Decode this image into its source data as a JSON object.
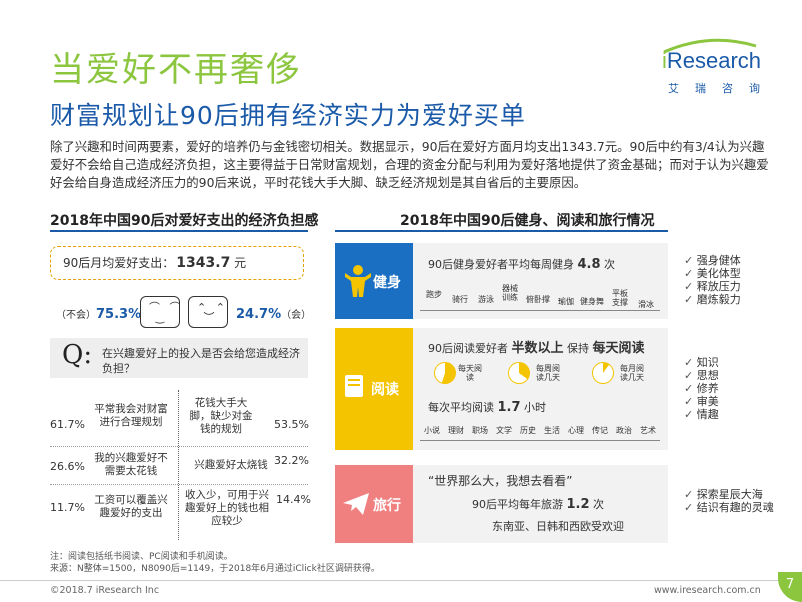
{
  "title": "当爱好不再奢侈",
  "subtitle": "财富规划让90后拥有经济实力为爱好买单",
  "logo": {
    "brand_prefix": "i",
    "brand_rest": "Research",
    "cn": "艾瑞咨询"
  },
  "intro": "除了兴趣和时间两要素，爱好的培养仍与金钱密切相关。数据显示，90后在爱好方面月均支出1343.7元。90后中约有3/4认为兴趣爱好不会给自己造成经济负担，这主要得益于日常财富规划，合理的资金分配与利用为爱好落地提供了资金基础；而对于认为兴趣爱好会给自身造成经济压力的90后来说，平时花钱大手大脚、缺乏经济规划是其自省后的主要原因。",
  "left": {
    "heading": "2018年中国90后对爱好支出的经济负担感",
    "month_label": "90后月均爱好支出：",
    "month_value": "1343.7",
    "month_unit": "元",
    "no_label": "（不会）",
    "no_pct": "75.3%",
    "yes_pct": "24.7%",
    "yes_label": "（会）",
    "face_smile": "⌒ ⌒\n ‿ ",
    "face_sad": "⌃ ⌃\n ︶ ",
    "q_mark": "Q:",
    "question": "在兴趣爱好上的投入是否会给您造成经济负担？",
    "rows": [
      {
        "left_pct": "61.7%",
        "left_text": "平常我会对财富进行合理规划",
        "right_text": "花钱大手大脚，缺少对金钱的规划",
        "right_pct": "53.5%"
      },
      {
        "left_pct": "26.6%",
        "left_text": "我的兴趣爱好不需要太花钱",
        "right_text": "兴趣爱好太烧钱",
        "right_pct": "32.2%"
      },
      {
        "left_pct": "11.7%",
        "left_text": "工资可以覆盖兴趣爱好的支出",
        "right_text": "收入少，可用于兴趣爱好上的钱也相应较少",
        "right_pct": "14.4%"
      }
    ]
  },
  "right": {
    "heading": "2018年中国90后健身、阅读和旅行情况",
    "fitness": {
      "label": "健身",
      "line_prefix": "90后健身爱好者平均每周健身",
      "value": "4.8",
      "unit": "次",
      "activities": [
        "跑步",
        "骑行",
        "游泳",
        "器械训练",
        "俯卧撑",
        "瑜伽",
        "健身舞",
        "平板支撑",
        "滑冰"
      ],
      "benefits": [
        "强身健体",
        "美化体型",
        "释放压力",
        "磨炼毅力"
      ]
    },
    "reading": {
      "label": "阅读",
      "line_prefix": "90后阅读爱好者",
      "emph1": "半数以上",
      "mid": "保持",
      "emph2": "每天阅读",
      "pies": [
        {
          "label": "每天阅读",
          "share": 0.55
        },
        {
          "label": "每周阅读几天",
          "share": 0.35
        },
        {
          "label": "每月阅读几天",
          "share": 0.1
        }
      ],
      "avg_prefix": "每次平均阅读",
      "avg_value": "1.7",
      "avg_unit": "小时",
      "genres": [
        "小说",
        "理财",
        "职场",
        "文学",
        "历史",
        "生活",
        "心理",
        "传记",
        "政治",
        "艺术"
      ],
      "benefits": [
        "知识",
        "思想",
        "修养",
        "审美",
        "情趣"
      ]
    },
    "travel": {
      "label": "旅行",
      "quote": "“世界那么大，我想去看看”",
      "line_prefix": "90后平均每年旅游",
      "value": "1.2",
      "unit": "次",
      "dest": "东南亚、日韩和西欧受欢迎",
      "benefits": [
        "探索星辰大海",
        "结识有趣的灵魂"
      ]
    }
  },
  "notes": [
    "注：阅读包括纸书阅读、PC阅读和手机阅读。",
    "来源：N整体=1500，N8090后=1149，于2018年6月通过iClick社区调研获得。"
  ],
  "footer_left": "©2018.7 iResearch Inc",
  "footer_right": "www.iresearch.com.cn",
  "page_number": "7",
  "colors": {
    "green": "#8cc63f",
    "blue": "#1a5aa8",
    "fitness": "#1a6fc2",
    "reading": "#f5c400",
    "travel": "#f08080"
  }
}
